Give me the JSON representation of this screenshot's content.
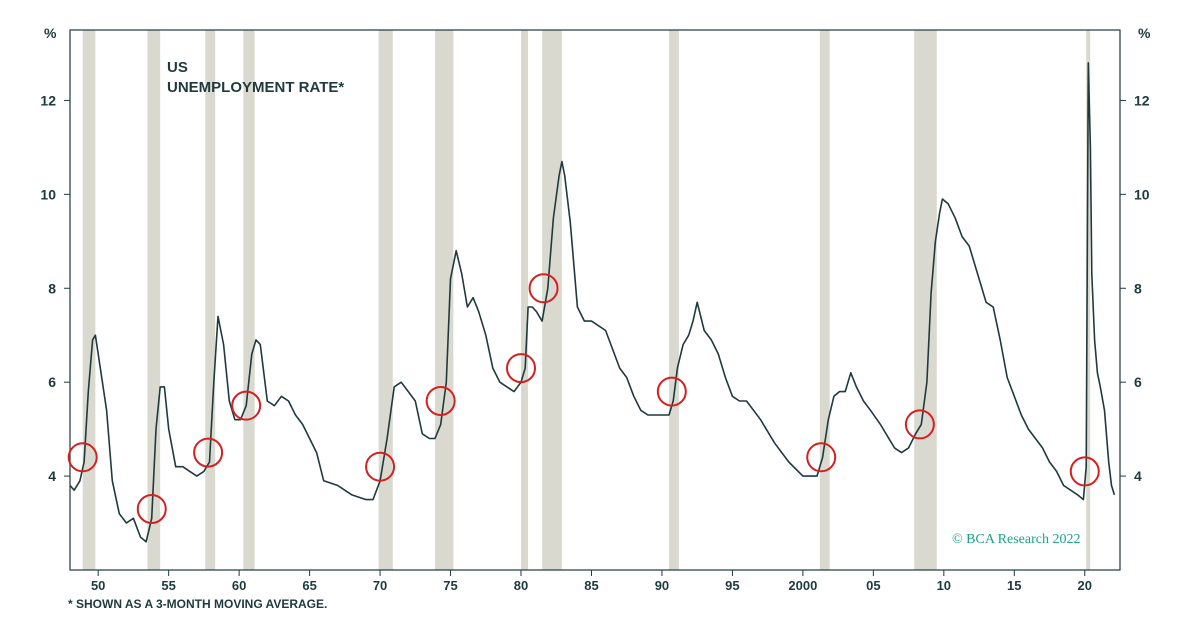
{
  "chart_data": {
    "type": "line",
    "title": "US",
    "subtitle": "UNEMPLOYMENT RATE*",
    "y_unit_left": "%",
    "y_unit_right": "%",
    "ylim": [
      2.0,
      13.5
    ],
    "xlim": [
      1948.0,
      2022.5
    ],
    "x_tick_values": [
      1950,
      1955,
      1960,
      1965,
      1970,
      1975,
      1980,
      1985,
      1990,
      1995,
      2000,
      2005,
      2010,
      2015,
      2020
    ],
    "x_tick_labels": [
      "50",
      "55",
      "60",
      "65",
      "70",
      "75",
      "80",
      "85",
      "90",
      "95",
      "2000",
      "05",
      "10",
      "15",
      "20"
    ],
    "y_ticks": [
      4,
      6,
      8,
      10,
      12
    ],
    "line_color": "#1f3a3d",
    "recession_color": "#d9d9cf",
    "marker_color": "#d42020",
    "recessions": [
      [
        1948.9,
        1949.8
      ],
      [
        1953.5,
        1954.4
      ],
      [
        1957.6,
        1958.3
      ],
      [
        1960.3,
        1961.1
      ],
      [
        1969.9,
        1970.9
      ],
      [
        1973.9,
        1975.2
      ],
      [
        1980.0,
        1980.5
      ],
      [
        1981.5,
        1982.9
      ],
      [
        1990.5,
        1991.2
      ],
      [
        2001.2,
        2001.9
      ],
      [
        2007.9,
        2009.5
      ],
      [
        2020.1,
        2020.3
      ]
    ],
    "series": [
      {
        "x": [
          1948.0,
          1948.3,
          1948.7,
          1949.0,
          1949.3,
          1949.6,
          1949.8,
          1950.2,
          1950.6,
          1951.0,
          1951.5,
          1952.0,
          1952.5,
          1953.0,
          1953.4,
          1953.8,
          1954.1,
          1954.4,
          1954.7,
          1955.0,
          1955.5,
          1956.0,
          1956.5,
          1957.0,
          1957.5,
          1957.9,
          1958.2,
          1958.5,
          1958.9,
          1959.3,
          1959.7,
          1960.1,
          1960.5,
          1960.9,
          1961.2,
          1961.5,
          1962.0,
          1962.5,
          1963.0,
          1963.5,
          1964.0,
          1964.5,
          1965.0,
          1965.5,
          1966.0,
          1967.0,
          1968.0,
          1969.0,
          1969.5,
          1970.0,
          1970.5,
          1971.0,
          1971.5,
          1972.0,
          1972.5,
          1973.0,
          1973.5,
          1973.9,
          1974.3,
          1974.7,
          1975.0,
          1975.4,
          1975.8,
          1976.2,
          1976.6,
          1977.0,
          1977.5,
          1978.0,
          1978.5,
          1979.0,
          1979.5,
          1980.0,
          1980.3,
          1980.5,
          1980.8,
          1981.1,
          1981.5,
          1981.9,
          1982.3,
          1982.7,
          1982.9,
          1983.1,
          1983.5,
          1984.0,
          1984.5,
          1985.0,
          1986.0,
          1987.0,
          1987.5,
          1988.0,
          1988.5,
          1989.0,
          1989.5,
          1990.0,
          1990.5,
          1990.8,
          1991.1,
          1991.5,
          1991.9,
          1992.2,
          1992.5,
          1993.0,
          1993.5,
          1994.0,
          1994.5,
          1995.0,
          1995.5,
          1996.0,
          1997.0,
          1998.0,
          1999.0,
          2000.0,
          2000.5,
          2001.0,
          2001.4,
          2001.8,
          2002.2,
          2002.6,
          2003.0,
          2003.4,
          2003.8,
          2004.3,
          2004.8,
          2005.5,
          2006.5,
          2007.0,
          2007.5,
          2008.0,
          2008.4,
          2008.8,
          2009.1,
          2009.4,
          2009.7,
          2009.9,
          2010.3,
          2010.8,
          2011.3,
          2011.8,
          2012.5,
          2013.0,
          2013.5,
          2014.0,
          2014.5,
          2015.0,
          2015.5,
          2016.0,
          2016.5,
          2017.0,
          2017.5,
          2018.0,
          2018.5,
          2019.0,
          2019.5,
          2019.9,
          2020.1,
          2020.25,
          2020.4,
          2020.5,
          2020.7,
          2020.9,
          2021.1,
          2021.4,
          2021.7,
          2021.9,
          2022.1
        ],
        "y": [
          3.8,
          3.7,
          3.9,
          4.3,
          5.8,
          6.9,
          7.0,
          6.2,
          5.4,
          3.9,
          3.2,
          3.0,
          3.1,
          2.7,
          2.6,
          3.1,
          5.0,
          5.9,
          5.9,
          5.0,
          4.2,
          4.2,
          4.1,
          4.0,
          4.1,
          4.3,
          6.0,
          7.4,
          6.8,
          5.6,
          5.2,
          5.2,
          5.5,
          6.6,
          6.9,
          6.8,
          5.6,
          5.5,
          5.7,
          5.6,
          5.3,
          5.1,
          4.8,
          4.5,
          3.9,
          3.8,
          3.6,
          3.5,
          3.5,
          3.9,
          4.8,
          5.9,
          6.0,
          5.8,
          5.6,
          4.9,
          4.8,
          4.8,
          5.1,
          6.0,
          8.2,
          8.8,
          8.3,
          7.6,
          7.8,
          7.5,
          7.0,
          6.3,
          6.0,
          5.9,
          5.8,
          6.0,
          6.3,
          7.6,
          7.6,
          7.5,
          7.3,
          8.0,
          9.5,
          10.4,
          10.7,
          10.4,
          9.4,
          7.6,
          7.3,
          7.3,
          7.1,
          6.3,
          6.1,
          5.7,
          5.4,
          5.3,
          5.3,
          5.3,
          5.3,
          5.6,
          6.3,
          6.8,
          7.0,
          7.3,
          7.7,
          7.1,
          6.9,
          6.6,
          6.1,
          5.7,
          5.6,
          5.6,
          5.2,
          4.7,
          4.3,
          4.0,
          4.0,
          4.0,
          4.4,
          5.2,
          5.7,
          5.8,
          5.8,
          6.2,
          5.9,
          5.6,
          5.4,
          5.1,
          4.6,
          4.5,
          4.6,
          4.9,
          5.1,
          6.0,
          7.9,
          9.0,
          9.6,
          9.9,
          9.8,
          9.5,
          9.1,
          8.9,
          8.2,
          7.7,
          7.6,
          6.9,
          6.1,
          5.7,
          5.3,
          5.0,
          4.8,
          4.6,
          4.3,
          4.1,
          3.8,
          3.7,
          3.6,
          3.5,
          4.2,
          12.8,
          11.0,
          8.3,
          6.9,
          6.2,
          5.9,
          5.4,
          4.3,
          3.8,
          3.6
        ]
      }
    ],
    "markers": [
      {
        "x": 1948.9,
        "y": 4.4
      },
      {
        "x": 1953.8,
        "y": 3.3
      },
      {
        "x": 1957.8,
        "y": 4.5
      },
      {
        "x": 1960.5,
        "y": 5.5
      },
      {
        "x": 1970.0,
        "y": 4.2
      },
      {
        "x": 1974.3,
        "y": 5.6
      },
      {
        "x": 1980.0,
        "y": 6.3
      },
      {
        "x": 1981.6,
        "y": 8.0
      },
      {
        "x": 1990.7,
        "y": 5.8
      },
      {
        "x": 2001.3,
        "y": 4.4
      },
      {
        "x": 2008.3,
        "y": 5.1
      },
      {
        "x": 2020.0,
        "y": 4.1
      }
    ],
    "credit": "© BCA Research 2022",
    "footnote": "* SHOWN AS A 3-MONTH MOVING AVERAGE."
  }
}
